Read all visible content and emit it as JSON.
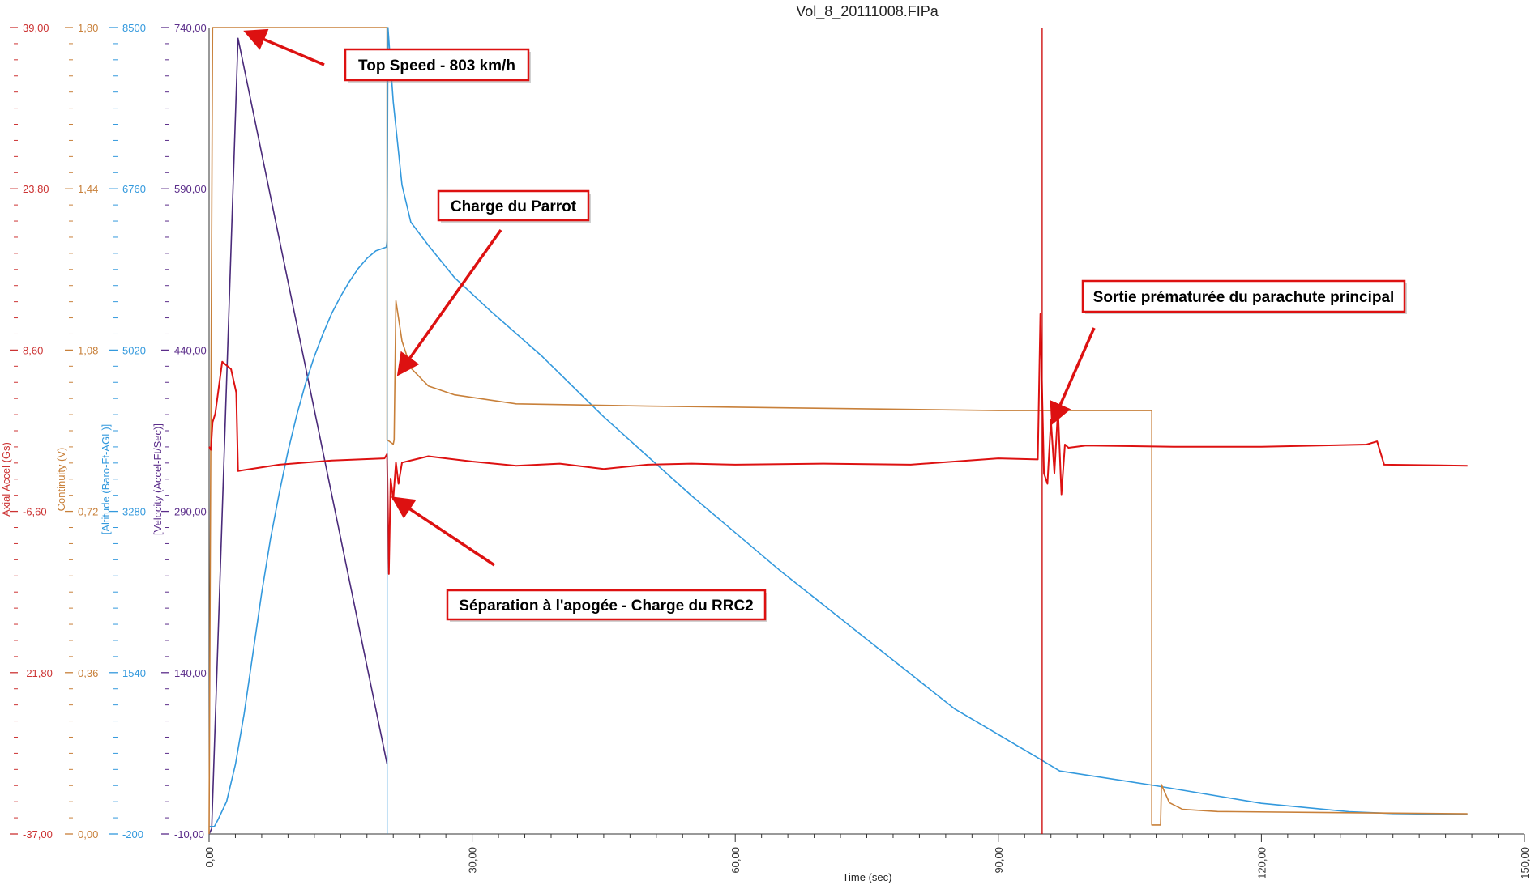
{
  "chart_data": {
    "type": "line",
    "title": "Vol_8_20111008.FIPa",
    "xlabel": "Time (sec)",
    "xlim": [
      0,
      150
    ],
    "x_ticks": [
      "0,00",
      "30,00",
      "60,00",
      "90,00",
      "120,00",
      "150,00"
    ],
    "axes": [
      {
        "id": "accel",
        "label": "Axial Accel (Gs)",
        "color": "#cc3333",
        "range": [
          -37.0,
          39.0
        ],
        "ticks": [
          "39,00",
          "23,80",
          "8,60",
          "-6,60",
          "-21,80",
          "-37,00"
        ]
      },
      {
        "id": "continuity",
        "label": "Continuity (V)",
        "color": "#c8803a",
        "range": [
          0.0,
          1.8
        ],
        "ticks": [
          "1,80",
          "1,44",
          "1,08",
          "0,72",
          "0,36",
          "0,00"
        ]
      },
      {
        "id": "altitude",
        "label": "[Altitude (Baro-Ft-AGL)]",
        "color": "#3399dd",
        "range": [
          -200,
          8500
        ],
        "ticks": [
          "8500",
          "6760",
          "5020",
          "3280",
          "1540",
          "-200"
        ]
      },
      {
        "id": "velocity",
        "label": "[Velocity (Accel-Ft/Sec)]",
        "color": "#5b2d8a",
        "range": [
          -10,
          740
        ],
        "ticks": [
          "740,00",
          "590,00",
          "440,00",
          "290,00",
          "140,00",
          "-10,00"
        ]
      }
    ],
    "series": [
      {
        "axis": "velocity",
        "color": "#4a2a7a",
        "points": [
          [
            0,
            -10
          ],
          [
            0.3,
            -5
          ],
          [
            3.3,
            730
          ],
          [
            20.3,
            55
          ]
        ]
      },
      {
        "axis": "altitude",
        "color": "#3399dd",
        "points": [
          [
            0,
            -120
          ],
          [
            0.6,
            -120
          ],
          [
            1,
            -50
          ],
          [
            2,
            150
          ],
          [
            3,
            550
          ],
          [
            4,
            1100
          ],
          [
            5,
            1750
          ],
          [
            6,
            2400
          ],
          [
            7,
            2980
          ],
          [
            8,
            3480
          ],
          [
            9,
            3930
          ],
          [
            10,
            4320
          ],
          [
            11,
            4660
          ],
          [
            12,
            4950
          ],
          [
            13,
            5200
          ],
          [
            14,
            5420
          ],
          [
            15,
            5600
          ],
          [
            16,
            5760
          ],
          [
            17,
            5900
          ],
          [
            18,
            6010
          ],
          [
            19,
            6090
          ],
          [
            20.2,
            6130
          ],
          [
            20.3,
            6200
          ],
          [
            20.4,
            8500
          ],
          [
            21,
            7700
          ],
          [
            22,
            6800
          ],
          [
            23,
            6400
          ],
          [
            25,
            6150
          ],
          [
            28,
            5800
          ],
          [
            32,
            5450
          ],
          [
            38,
            4950
          ],
          [
            45,
            4300
          ],
          [
            55,
            3450
          ],
          [
            65,
            2650
          ],
          [
            75,
            1900
          ],
          [
            85,
            1150
          ],
          [
            94,
            650
          ],
          [
            97,
            480
          ],
          [
            108,
            320
          ],
          [
            120,
            130
          ],
          [
            130,
            40
          ],
          [
            135,
            20
          ],
          [
            143.5,
            10
          ]
        ]
      },
      {
        "axis": "continuity",
        "color": "#c8803a",
        "points": [
          [
            0,
            0.0
          ],
          [
            0.4,
            1.8
          ],
          [
            20.3,
            1.8
          ],
          [
            20.3,
            0.88
          ],
          [
            21,
            0.87
          ],
          [
            21.1,
            0.88
          ],
          [
            21.3,
            1.19
          ],
          [
            22,
            1.1
          ],
          [
            23,
            1.04
          ],
          [
            25,
            1.0
          ],
          [
            28,
            0.98
          ],
          [
            35,
            0.96
          ],
          [
            50,
            0.955
          ],
          [
            70,
            0.95
          ],
          [
            90,
            0.945
          ],
          [
            107.5,
            0.945
          ],
          [
            107.5,
            0.02
          ],
          [
            108.5,
            0.02
          ],
          [
            108.6,
            0.11
          ],
          [
            109.5,
            0.07
          ],
          [
            111,
            0.055
          ],
          [
            115,
            0.05
          ],
          [
            143.5,
            0.045
          ]
        ]
      },
      {
        "axis": "accel",
        "color": "#dd1111",
        "points": [
          [
            0,
            -0.5
          ],
          [
            0.2,
            -0.8
          ],
          [
            0.4,
            1.8
          ],
          [
            0.7,
            2.6
          ],
          [
            1.5,
            7.5
          ],
          [
            2.5,
            6.8
          ],
          [
            3.1,
            4.6
          ],
          [
            3.3,
            -2.8
          ],
          [
            4,
            -2.7
          ],
          [
            8,
            -2.2
          ],
          [
            14,
            -1.8
          ],
          [
            20,
            -1.6
          ],
          [
            20.3,
            -1.2
          ],
          [
            20.5,
            -12.5
          ],
          [
            20.7,
            -3.5
          ],
          [
            21,
            -5.5
          ],
          [
            21.3,
            -2.0
          ],
          [
            21.6,
            -4.0
          ],
          [
            22,
            -2.0
          ],
          [
            25,
            -1.4
          ],
          [
            30,
            -1.9
          ],
          [
            35,
            -2.3
          ],
          [
            40,
            -2.1
          ],
          [
            45,
            -2.6
          ],
          [
            50,
            -2.2
          ],
          [
            55,
            -2.1
          ],
          [
            60,
            -2.2
          ],
          [
            70,
            -2.1
          ],
          [
            80,
            -2.2
          ],
          [
            90,
            -1.6
          ],
          [
            94.5,
            -1.7
          ],
          [
            94.8,
            12.0
          ],
          [
            95.2,
            -3.0
          ],
          [
            95.6,
            -4.0
          ],
          [
            96,
            2.0
          ],
          [
            96.4,
            -3.0
          ],
          [
            96.8,
            3.0
          ],
          [
            97.2,
            -5.0
          ],
          [
            97.6,
            -0.3
          ],
          [
            98,
            -0.6
          ],
          [
            100,
            -0.4
          ],
          [
            110,
            -0.5
          ],
          [
            120,
            -0.5
          ],
          [
            132,
            -0.3
          ],
          [
            133.2,
            0.0
          ],
          [
            134,
            -2.2
          ],
          [
            143.5,
            -2.3
          ]
        ]
      }
    ],
    "markers": [
      {
        "x": 20.3,
        "color": "#3399dd"
      },
      {
        "x": 95.0,
        "color": "#cc0000"
      }
    ],
    "annotations": [
      {
        "text": "Top Speed - 803 km/h",
        "x": 4.5,
        "y": 735,
        "axis": "velocity"
      },
      {
        "text": "Charge du Parrot",
        "x": 21.8,
        "y": 420,
        "axis": "velocity"
      },
      {
        "text": "Séparation à l'apogée - Charge du RRC2",
        "x": 21.3,
        "y": -5.5,
        "axis": "accel"
      },
      {
        "text": "Sortie prématurée du parachute principal",
        "x": 96.3,
        "y": 2.0,
        "axis": "accel"
      }
    ]
  }
}
